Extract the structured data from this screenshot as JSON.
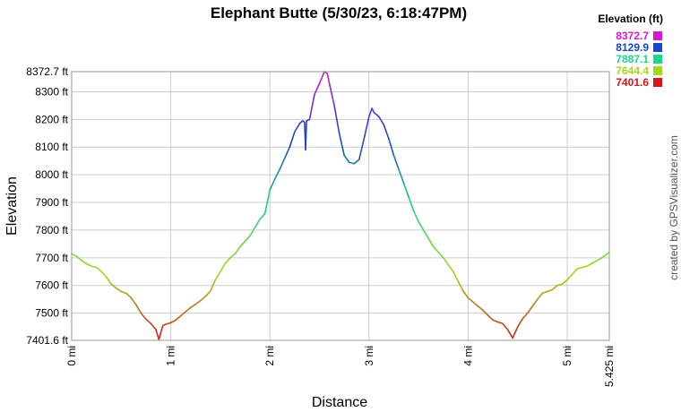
{
  "chart_data": {
    "type": "line",
    "title": "Elephant Butte (5/30/23, 6:18:47PM)",
    "xlabel": "Distance",
    "ylabel": "Elevation",
    "x_unit": "mi",
    "y_unit": "ft",
    "xlim": [
      0,
      5.425
    ],
    "ylim": [
      7401.6,
      8372.7
    ],
    "x_ticks": [
      0,
      1,
      2,
      3,
      4,
      5,
      5.425
    ],
    "y_ticks": [
      7401.6,
      7500,
      7600,
      7700,
      7800,
      7900,
      8000,
      8100,
      8200,
      8300,
      8372.7
    ],
    "x_tick_labels": [
      "0 mi",
      "1 mi",
      "2 mi",
      "3 mi",
      "4 mi",
      "5 mi",
      "5.425 mi"
    ],
    "y_tick_labels": [
      "7401.6 ft",
      "7500 ft",
      "7600 ft",
      "7700 ft",
      "7800 ft",
      "7900 ft",
      "8000 ft",
      "8100 ft",
      "8200 ft",
      "8300 ft",
      "8372.7 ft"
    ],
    "grid": true,
    "legend": {
      "title": "Elevation (ft)",
      "placement": "top-right",
      "entries": [
        {
          "label": "8372.7",
          "color": "#d21ad2"
        },
        {
          "label": "8129.9",
          "color": "#1846c8"
        },
        {
          "label": "7887.1",
          "color": "#18d88a"
        },
        {
          "label": "7644.4",
          "color": "#a6d81a"
        },
        {
          "label": "7401.6",
          "color": "#d21818"
        }
      ]
    },
    "credit": "created by GPSVisualizer.com",
    "series": [
      {
        "x": [
          0.0,
          0.05,
          0.1,
          0.15,
          0.2,
          0.25,
          0.3,
          0.35,
          0.4,
          0.45,
          0.5,
          0.55,
          0.6,
          0.65,
          0.7,
          0.75,
          0.8,
          0.85,
          0.88,
          0.9,
          0.92,
          0.95,
          1.0,
          1.05,
          1.1,
          1.15,
          1.2,
          1.25,
          1.3,
          1.35,
          1.4,
          1.45,
          1.5,
          1.55,
          1.6,
          1.65,
          1.7,
          1.75,
          1.8,
          1.85,
          1.9,
          1.95,
          2.0,
          2.05,
          2.1,
          2.15,
          2.2,
          2.25,
          2.3,
          2.33,
          2.35,
          2.36,
          2.37,
          2.4,
          2.45,
          2.5,
          2.55,
          2.58,
          2.6,
          2.65,
          2.7,
          2.75,
          2.8,
          2.85,
          2.9,
          2.95,
          3.0,
          3.03,
          3.05,
          3.1,
          3.15,
          3.2,
          3.25,
          3.3,
          3.35,
          3.4,
          3.45,
          3.5,
          3.55,
          3.6,
          3.65,
          3.7,
          3.75,
          3.8,
          3.85,
          3.9,
          3.95,
          4.0,
          4.05,
          4.1,
          4.15,
          4.2,
          4.25,
          4.3,
          4.35,
          4.4,
          4.45,
          4.5,
          4.55,
          4.6,
          4.65,
          4.7,
          4.75,
          4.8,
          4.85,
          4.9,
          4.95,
          5.0,
          5.05,
          5.1,
          5.15,
          5.2,
          5.25,
          5.3,
          5.35,
          5.425
        ],
        "y": [
          7715,
          7705,
          7690,
          7678,
          7670,
          7665,
          7650,
          7630,
          7605,
          7590,
          7578,
          7572,
          7555,
          7530,
          7500,
          7478,
          7462,
          7440,
          7405,
          7430,
          7455,
          7460,
          7465,
          7475,
          7490,
          7505,
          7520,
          7532,
          7545,
          7560,
          7580,
          7620,
          7650,
          7680,
          7700,
          7715,
          7740,
          7760,
          7780,
          7810,
          7840,
          7860,
          7945,
          7985,
          8020,
          8060,
          8100,
          8155,
          8185,
          8195,
          8190,
          8090,
          8195,
          8200,
          8290,
          8330,
          8372.7,
          8365,
          8330,
          8250,
          8150,
          8070,
          8045,
          8040,
          8055,
          8130,
          8210,
          8240,
          8225,
          8210,
          8180,
          8130,
          8070,
          8020,
          7970,
          7920,
          7870,
          7830,
          7800,
          7770,
          7740,
          7720,
          7700,
          7675,
          7650,
          7615,
          7580,
          7555,
          7540,
          7525,
          7510,
          7492,
          7475,
          7468,
          7462,
          7440,
          7410,
          7450,
          7480,
          7500,
          7525,
          7550,
          7572,
          7578,
          7585,
          7600,
          7605,
          7620,
          7640,
          7660,
          7665,
          7670,
          7680,
          7690,
          7700,
          7720
        ]
      }
    ]
  }
}
